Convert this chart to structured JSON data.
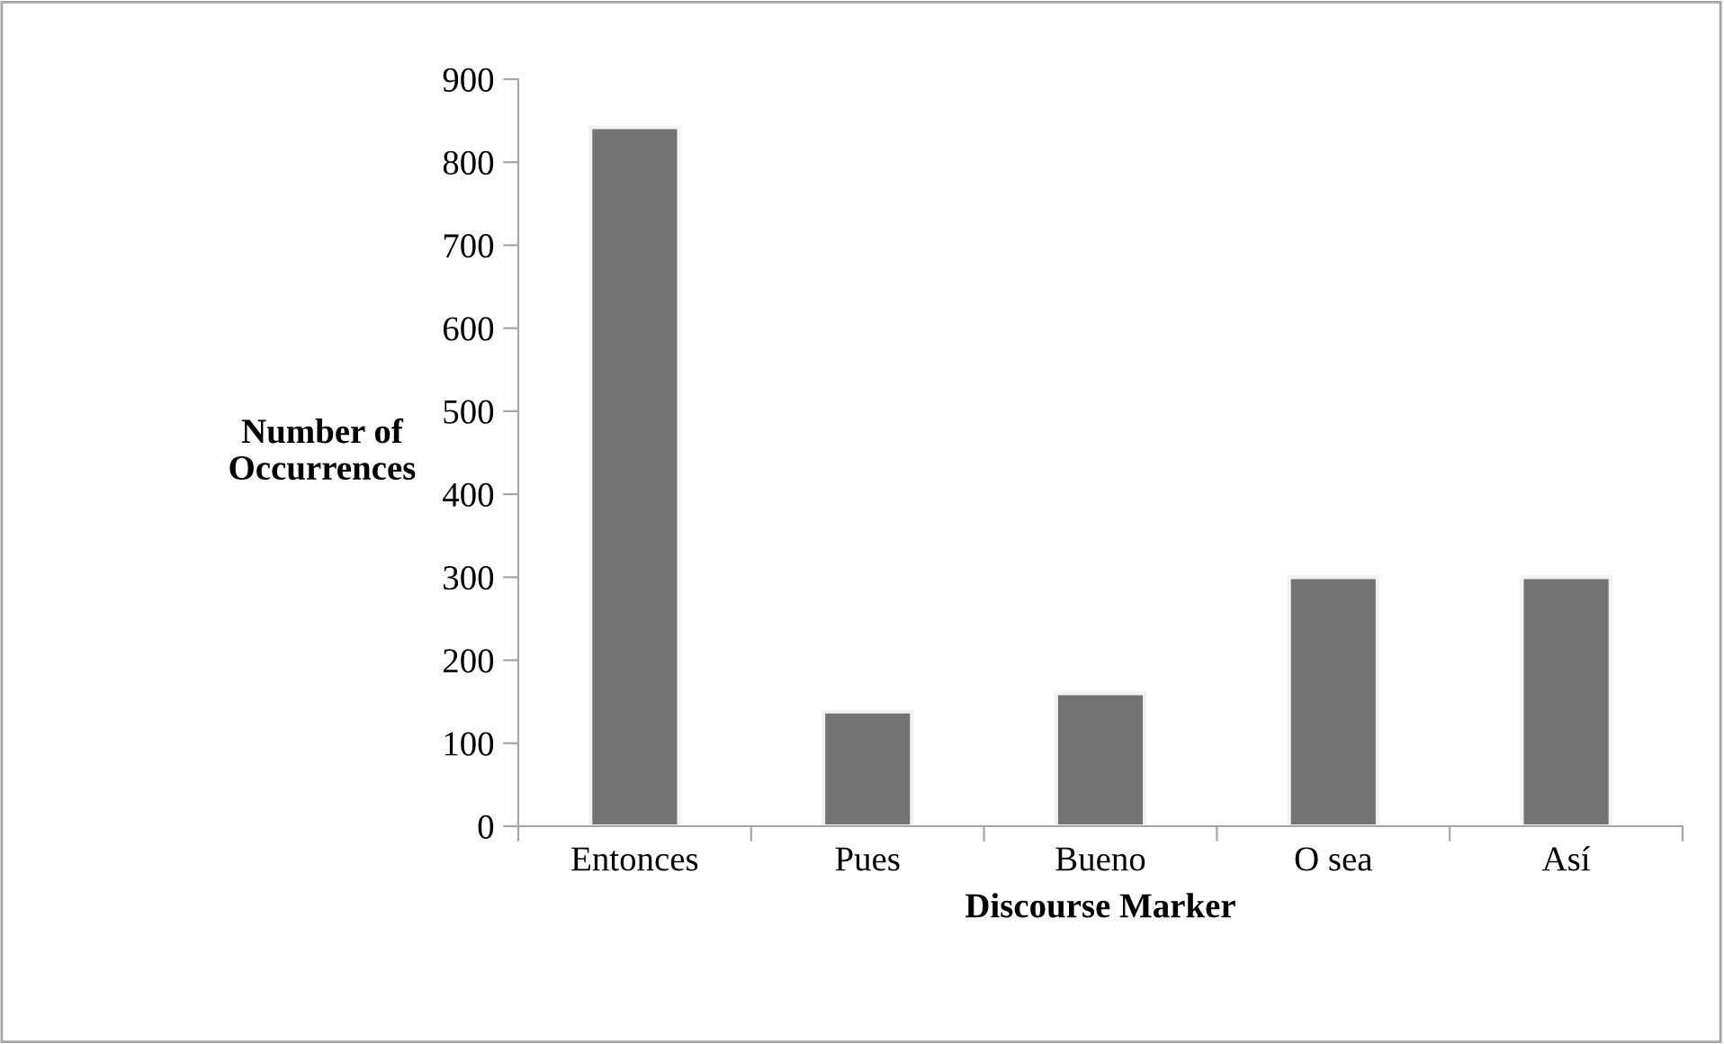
{
  "chart_data": {
    "type": "bar",
    "xlabel": "Discourse Marker",
    "ylabel": "Number of\nOccurrences",
    "categories": [
      "Entonces",
      "Pues",
      "Bueno",
      "O sea",
      "Así"
    ],
    "values": [
      842,
      138,
      160,
      300,
      300
    ],
    "color": "#737373",
    "ylim": [
      0,
      900
    ],
    "yticks": [
      0,
      100,
      200,
      300,
      400,
      500,
      600,
      700,
      800,
      900
    ],
    "grid": false,
    "legend": false
  }
}
